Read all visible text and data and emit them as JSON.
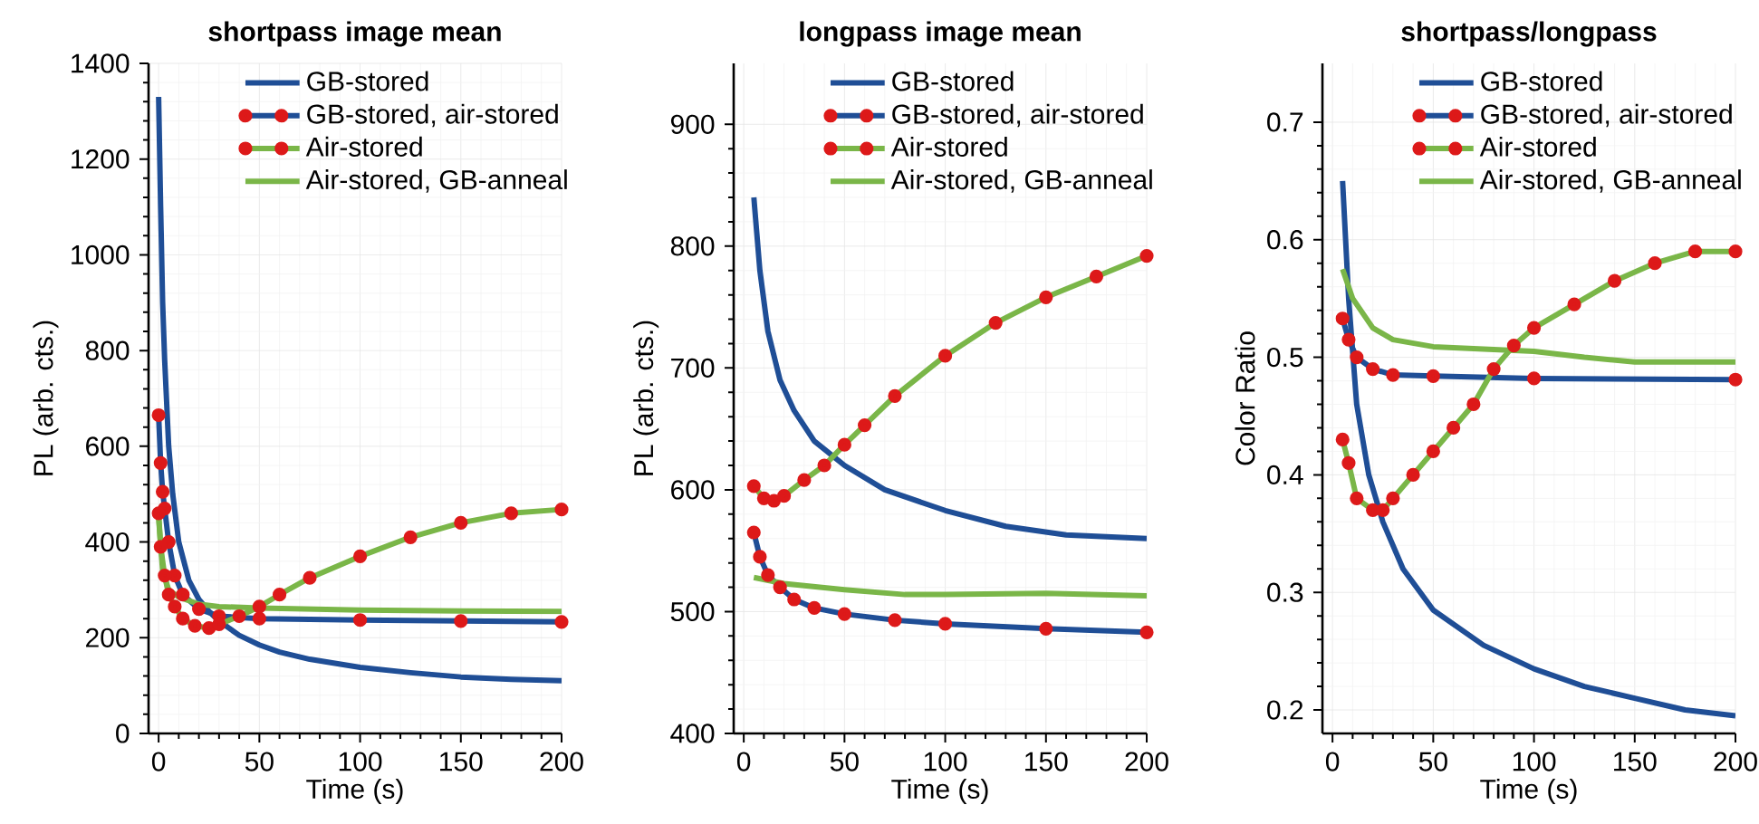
{
  "chart_data": [
    {
      "type": "line",
      "title": "shortpass image mean",
      "xlabel": "Time (s)",
      "ylabel": "PL (arb. cts.)",
      "xlim": [
        -5,
        200
      ],
      "ylim": [
        0,
        1400
      ],
      "xticks": [
        0,
        50,
        100,
        150,
        200
      ],
      "yticks": [
        0,
        200,
        400,
        600,
        800,
        1000,
        1200,
        1400
      ],
      "grid": true,
      "legend": "top right",
      "series": [
        {
          "name": "GB-stored",
          "color": "#1f4e96",
          "marker": "none",
          "x": [
            0,
            1,
            2,
            3,
            5,
            7,
            10,
            15,
            20,
            25,
            30,
            40,
            50,
            60,
            75,
            100,
            125,
            150,
            175,
            200
          ],
          "values": [
            1330,
            1100,
            900,
            780,
            600,
            500,
            400,
            320,
            280,
            255,
            235,
            205,
            185,
            170,
            155,
            138,
            127,
            118,
            113,
            110
          ]
        },
        {
          "name": "GB-stored, air-stored",
          "color": "#1f4e96",
          "marker": "circle",
          "x": [
            0,
            1,
            2,
            3,
            5,
            8,
            12,
            20,
            30,
            50,
            100,
            150,
            200
          ],
          "values": [
            665,
            565,
            505,
            470,
            400,
            330,
            290,
            260,
            245,
            240,
            237,
            235,
            233
          ]
        },
        {
          "name": "Air-stored",
          "color": "#7ab648",
          "marker": "circle",
          "x": [
            0,
            1,
            3,
            5,
            8,
            12,
            18,
            25,
            30,
            40,
            50,
            60,
            75,
            100,
            125,
            150,
            175,
            200
          ],
          "values": [
            460,
            390,
            330,
            290,
            265,
            240,
            225,
            220,
            228,
            245,
            265,
            290,
            325,
            370,
            410,
            440,
            460,
            468
          ]
        },
        {
          "name": "Air-stored, GB-anneal",
          "color": "#7ab648",
          "marker": "none",
          "x": [
            0,
            2,
            5,
            10,
            20,
            30,
            50,
            100,
            150,
            200
          ],
          "values": [
            450,
            340,
            300,
            285,
            270,
            265,
            262,
            258,
            256,
            255
          ]
        }
      ]
    },
    {
      "type": "line",
      "title": "longpass image mean",
      "xlabel": "Time (s)",
      "ylabel": "PL (arb. cts.)",
      "xlim": [
        -5,
        200
      ],
      "ylim": [
        400,
        950
      ],
      "xticks": [
        0,
        50,
        100,
        150,
        200
      ],
      "yticks": [
        400,
        500,
        600,
        700,
        800,
        900
      ],
      "grid": true,
      "legend": "top right",
      "series": [
        {
          "name": "GB-stored",
          "color": "#1f4e96",
          "marker": "none",
          "x": [
            5,
            8,
            12,
            18,
            25,
            35,
            50,
            70,
            100,
            130,
            160,
            200
          ],
          "values": [
            840,
            780,
            730,
            690,
            665,
            640,
            620,
            600,
            583,
            570,
            563,
            560
          ]
        },
        {
          "name": "GB-stored, air-stored",
          "color": "#1f4e96",
          "marker": "circle",
          "x": [
            5,
            8,
            12,
            18,
            25,
            35,
            50,
            75,
            100,
            150,
            200
          ],
          "values": [
            565,
            545,
            530,
            520,
            510,
            503,
            498,
            493,
            490,
            486,
            483
          ]
        },
        {
          "name": "Air-stored",
          "color": "#7ab648",
          "marker": "circle",
          "x": [
            5,
            10,
            15,
            20,
            30,
            40,
            50,
            60,
            75,
            100,
            125,
            150,
            175,
            200
          ],
          "values": [
            603,
            593,
            591,
            595,
            608,
            620,
            637,
            653,
            677,
            710,
            737,
            758,
            775,
            792
          ]
        },
        {
          "name": "Air-stored, GB-anneal",
          "color": "#7ab648",
          "marker": "none",
          "x": [
            5,
            20,
            50,
            80,
            100,
            150,
            200
          ],
          "values": [
            528,
            523,
            518,
            514,
            514,
            515,
            513
          ]
        }
      ]
    },
    {
      "type": "line",
      "title": "shortpass/longpass",
      "xlabel": "Time (s)",
      "ylabel": "Color Ratio",
      "xlim": [
        -5,
        200
      ],
      "ylim": [
        0.18,
        0.75
      ],
      "xticks": [
        0,
        50,
        100,
        150,
        200
      ],
      "yticks": [
        0.2,
        0.3,
        0.4,
        0.5,
        0.6,
        0.7
      ],
      "grid": true,
      "legend": "top right",
      "series": [
        {
          "name": "GB-stored",
          "color": "#1f4e96",
          "marker": "none",
          "x": [
            5,
            8,
            12,
            18,
            25,
            35,
            50,
            75,
            100,
            125,
            150,
            175,
            200
          ],
          "values": [
            0.65,
            0.55,
            0.46,
            0.4,
            0.36,
            0.32,
            0.285,
            0.255,
            0.235,
            0.22,
            0.21,
            0.2,
            0.195
          ]
        },
        {
          "name": "GB-stored, air-stored",
          "color": "#1f4e96",
          "marker": "circle",
          "x": [
            5,
            8,
            12,
            20,
            30,
            50,
            100,
            200
          ],
          "values": [
            0.533,
            0.515,
            0.5,
            0.49,
            0.485,
            0.484,
            0.482,
            0.481
          ]
        },
        {
          "name": "Air-stored",
          "color": "#7ab648",
          "marker": "circle",
          "x": [
            5,
            8,
            12,
            20,
            25,
            30,
            40,
            50,
            60,
            70,
            80,
            90,
            100,
            120,
            140,
            160,
            180,
            200
          ],
          "values": [
            0.43,
            0.41,
            0.38,
            0.37,
            0.37,
            0.38,
            0.4,
            0.42,
            0.44,
            0.46,
            0.49,
            0.51,
            0.525,
            0.545,
            0.565,
            0.58,
            0.59,
            0.59
          ]
        },
        {
          "name": "Air-stored, GB-anneal",
          "color": "#7ab648",
          "marker": "none",
          "x": [
            5,
            10,
            20,
            30,
            50,
            75,
            100,
            125,
            150,
            200
          ],
          "values": [
            0.575,
            0.55,
            0.525,
            0.515,
            0.509,
            0.507,
            0.505,
            0.5,
            0.496,
            0.496
          ]
        }
      ]
    }
  ]
}
